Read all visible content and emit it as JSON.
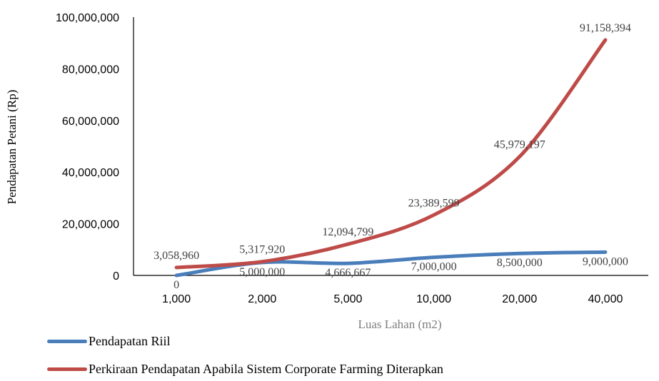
{
  "chart_data": {
    "type": "line",
    "categories": [
      "1,000",
      "2,000",
      "5,000",
      "10,000",
      "20,000",
      "40,000"
    ],
    "ylabel": "Pendapatan Petani (Rp)",
    "xlabel": "Luas Lahan (m2)",
    "ylim": [
      0,
      100000000
    ],
    "yticks": [
      0,
      20000000,
      40000000,
      60000000,
      80000000,
      100000000
    ],
    "ytick_labels": [
      "0",
      "20,000,000",
      "40,000,000",
      "60,000,000",
      "80,000,000",
      "100,000,000"
    ],
    "grid": false,
    "legend_position": "bottom",
    "series": [
      {
        "name": "Pendapatan Riil",
        "color": "#4a7ebb",
        "values": [
          0,
          5000000,
          4666667,
          7000000,
          8500000,
          9000000
        ],
        "labels": [
          "0",
          "5,000,000",
          "4,666,667",
          "7,000,000",
          "8,500,000",
          "9,000,000"
        ]
      },
      {
        "name": "Perkiraan Pendapatan Apabila Sistem Corporate Farming Diterapkan",
        "color": "#be4b48",
        "values": [
          3058960,
          5317920,
          12094799,
          23389599,
          45979197,
          91158394
        ],
        "labels": [
          "3,058,960",
          "5,317,920",
          "12,094,799",
          "23,389,599",
          "45,979,197",
          "91,158,394"
        ]
      }
    ]
  }
}
